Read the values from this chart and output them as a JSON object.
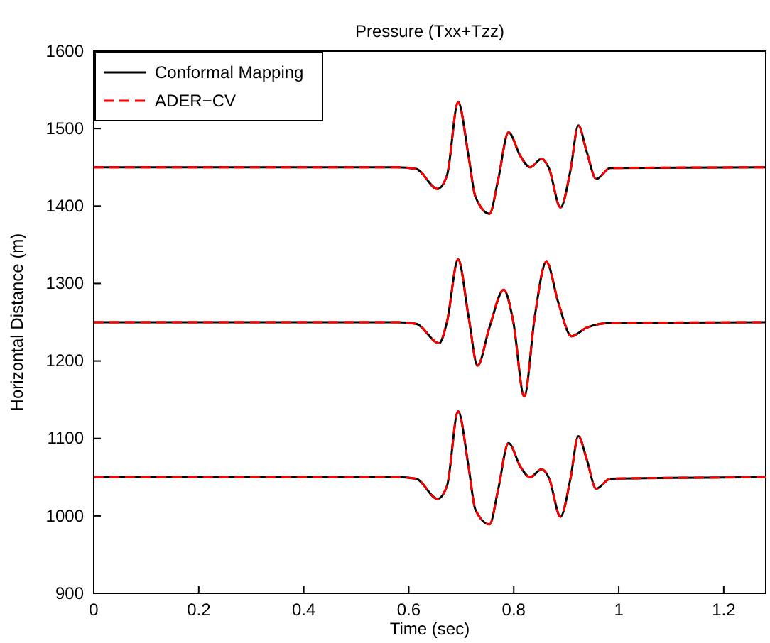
{
  "chart_data": {
    "type": "line",
    "title": "Pressure (Txx+Tzz)",
    "xlabel": "Time (sec)",
    "ylabel": "Horizontal Distance (m)",
    "xlim": [
      0,
      1.28
    ],
    "xticks": [
      0,
      0.2,
      0.4,
      0.6,
      0.8,
      1,
      1.2
    ],
    "ylim": [
      900,
      1600
    ],
    "yticks": [
      900,
      1000,
      1100,
      1200,
      1300,
      1400,
      1500,
      1600
    ],
    "grid": false,
    "legend": "top left",
    "marker": "none",
    "series": [
      {
        "name": "Conformal Mapping",
        "color": "#000000",
        "line_style": "solid",
        "x": [
          0,
          0.578,
          0.614,
          0.655,
          0.673,
          0.694,
          0.714,
          0.727,
          0.754,
          0.77,
          0.79,
          0.813,
          0.831,
          0.853,
          0.867,
          0.889,
          0.908,
          0.923,
          0.939,
          0.957,
          0.984,
          1.28,
          null,
          0,
          0.578,
          0.614,
          0.658,
          0.673,
          0.694,
          0.714,
          0.731,
          0.754,
          0.781,
          0.799,
          0.82,
          0.84,
          0.862,
          0.885,
          0.91,
          0.939,
          0.984,
          1.28,
          null,
          0,
          0.578,
          0.614,
          0.655,
          0.673,
          0.694,
          0.714,
          0.727,
          0.754,
          0.77,
          0.79,
          0.813,
          0.831,
          0.853,
          0.867,
          0.889,
          0.908,
          0.923,
          0.939,
          0.957,
          0.984,
          1.28
        ],
        "values": [
          1450,
          1450,
          1448,
          1422,
          1440,
          1534,
          1464,
          1412,
          1390,
          1433,
          1495,
          1464,
          1450,
          1461,
          1449,
          1398,
          1446,
          1504,
          1470,
          1435,
          1449,
          1450,
          null,
          1250,
          1250,
          1248,
          1223,
          1251,
          1331,
          1257,
          1194,
          1244,
          1292,
          1251,
          1154,
          1257,
          1328,
          1275,
          1232,
          1243,
          1249,
          1250,
          null,
          1050,
          1050,
          1048,
          1022,
          1039,
          1135,
          1063,
          1008,
          989,
          1033,
          1094,
          1063,
          1050,
          1060,
          1049,
          999,
          1048,
          1103,
          1073,
          1035,
          1048,
          1050
        ]
      },
      {
        "name": "ADER−CV",
        "color": "#ff0000",
        "line_style": "dashed",
        "x": [
          0,
          0.578,
          0.614,
          0.655,
          0.673,
          0.694,
          0.714,
          0.727,
          0.754,
          0.77,
          0.79,
          0.813,
          0.831,
          0.853,
          0.867,
          0.889,
          0.908,
          0.923,
          0.939,
          0.957,
          0.984,
          1.28,
          null,
          0,
          0.578,
          0.614,
          0.658,
          0.673,
          0.694,
          0.714,
          0.731,
          0.754,
          0.781,
          0.799,
          0.82,
          0.84,
          0.862,
          0.885,
          0.91,
          0.939,
          0.984,
          1.28,
          null,
          0,
          0.578,
          0.614,
          0.655,
          0.673,
          0.694,
          0.714,
          0.727,
          0.754,
          0.77,
          0.79,
          0.813,
          0.831,
          0.853,
          0.867,
          0.889,
          0.908,
          0.923,
          0.939,
          0.957,
          0.984,
          1.28
        ],
        "values": [
          1450,
          1450,
          1448,
          1422,
          1440,
          1534,
          1464,
          1412,
          1390,
          1433,
          1495,
          1464,
          1450,
          1461,
          1449,
          1398,
          1446,
          1504,
          1470,
          1435,
          1449,
          1450,
          null,
          1250,
          1250,
          1248,
          1223,
          1251,
          1331,
          1257,
          1194,
          1244,
          1292,
          1251,
          1154,
          1257,
          1328,
          1275,
          1232,
          1243,
          1249,
          1250,
          null,
          1050,
          1050,
          1048,
          1022,
          1039,
          1135,
          1063,
          1008,
          989,
          1033,
          1094,
          1063,
          1050,
          1060,
          1049,
          999,
          1048,
          1103,
          1073,
          1035,
          1048,
          1050
        ]
      }
    ]
  }
}
